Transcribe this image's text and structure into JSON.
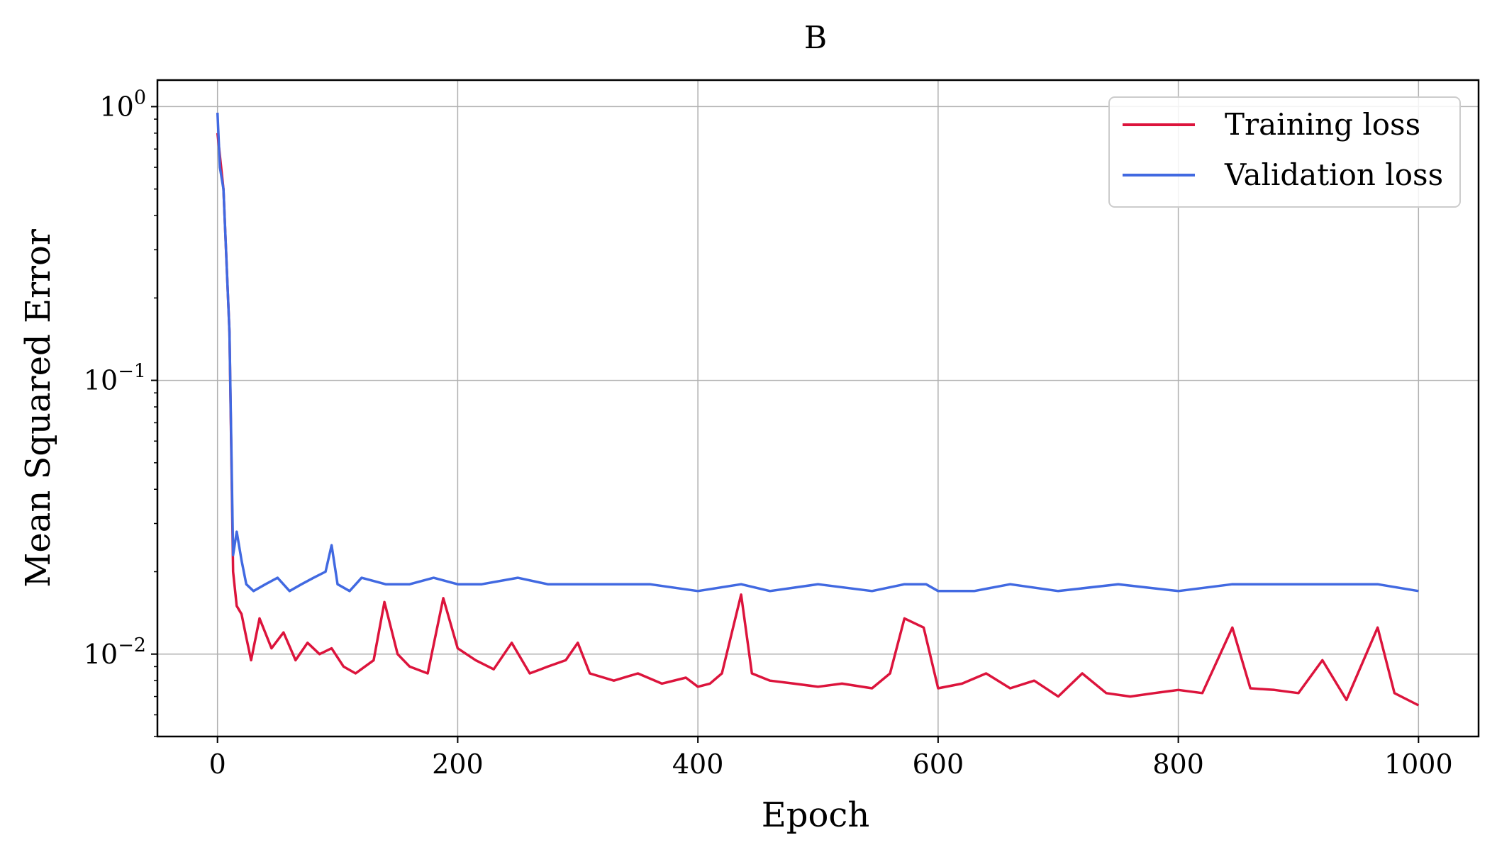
{
  "chart_data": {
    "type": "line",
    "title": "B",
    "xlabel": "Epoch",
    "ylabel": "Mean Squared Error",
    "xlim": [
      -50,
      1050
    ],
    "ylim": [
      0.005,
      1.25
    ],
    "yscale": "log",
    "grid": true,
    "legend_position": "top-right",
    "xticks": [
      0,
      200,
      400,
      600,
      800,
      1000
    ],
    "xtick_labels": [
      "0",
      "200",
      "400",
      "600",
      "800",
      "1000"
    ],
    "yticks": [
      {
        "value": 1,
        "base": "10",
        "exponent": "0"
      },
      {
        "value": 0.1,
        "base": "10",
        "exponent": "−1"
      },
      {
        "value": 0.01,
        "base": "10",
        "exponent": "−2"
      }
    ],
    "series": [
      {
        "name": "Training loss",
        "color": "#dc143c",
        "x": [
          0,
          5,
          10,
          13,
          16,
          20,
          24,
          28,
          35,
          45,
          55,
          65,
          75,
          85,
          95,
          105,
          115,
          130,
          139,
          150,
          160,
          175,
          188,
          200,
          215,
          230,
          245,
          260,
          275,
          290,
          300,
          310,
          330,
          350,
          370,
          390,
          400,
          410,
          420,
          436,
          445,
          460,
          480,
          500,
          520,
          545,
          560,
          572,
          588,
          600,
          620,
          640,
          660,
          680,
          700,
          720,
          740,
          760,
          780,
          800,
          820,
          845,
          860,
          880,
          900,
          920,
          940,
          966,
          980,
          1000
        ],
        "values": [
          0.8,
          0.5,
          0.15,
          0.02,
          0.015,
          0.014,
          0.0115,
          0.0095,
          0.0135,
          0.0105,
          0.012,
          0.0095,
          0.011,
          0.01,
          0.0105,
          0.009,
          0.0085,
          0.0095,
          0.0155,
          0.01,
          0.009,
          0.0085,
          0.016,
          0.0105,
          0.0095,
          0.0088,
          0.011,
          0.0085,
          0.009,
          0.0095,
          0.011,
          0.0085,
          0.008,
          0.0085,
          0.0078,
          0.0082,
          0.0076,
          0.0078,
          0.0085,
          0.0165,
          0.0085,
          0.008,
          0.0078,
          0.0076,
          0.0078,
          0.0075,
          0.0085,
          0.0135,
          0.0125,
          0.0075,
          0.0078,
          0.0085,
          0.0075,
          0.008,
          0.007,
          0.0085,
          0.0072,
          0.007,
          0.0072,
          0.0074,
          0.0072,
          0.0125,
          0.0075,
          0.0074,
          0.0072,
          0.0095,
          0.0068,
          0.0125,
          0.0072,
          0.0065
        ]
      },
      {
        "name": "Validation loss",
        "color": "#4169e1",
        "x": [
          0,
          2,
          5,
          10,
          13,
          16,
          20,
          24,
          30,
          40,
          50,
          60,
          70,
          80,
          90,
          95,
          100,
          110,
          120,
          140,
          160,
          180,
          200,
          220,
          250,
          275,
          300,
          330,
          360,
          400,
          436,
          460,
          500,
          545,
          572,
          590,
          600,
          630,
          660,
          700,
          750,
          800,
          845,
          880,
          920,
          966,
          1000
        ],
        "values": [
          0.95,
          0.6,
          0.5,
          0.15,
          0.023,
          0.028,
          0.022,
          0.018,
          0.017,
          0.018,
          0.019,
          0.017,
          0.018,
          0.019,
          0.02,
          0.025,
          0.018,
          0.017,
          0.019,
          0.018,
          0.018,
          0.019,
          0.018,
          0.018,
          0.019,
          0.018,
          0.018,
          0.018,
          0.018,
          0.017,
          0.018,
          0.017,
          0.018,
          0.017,
          0.018,
          0.018,
          0.017,
          0.017,
          0.018,
          0.017,
          0.018,
          0.017,
          0.018,
          0.018,
          0.018,
          0.018,
          0.017
        ]
      }
    ]
  }
}
